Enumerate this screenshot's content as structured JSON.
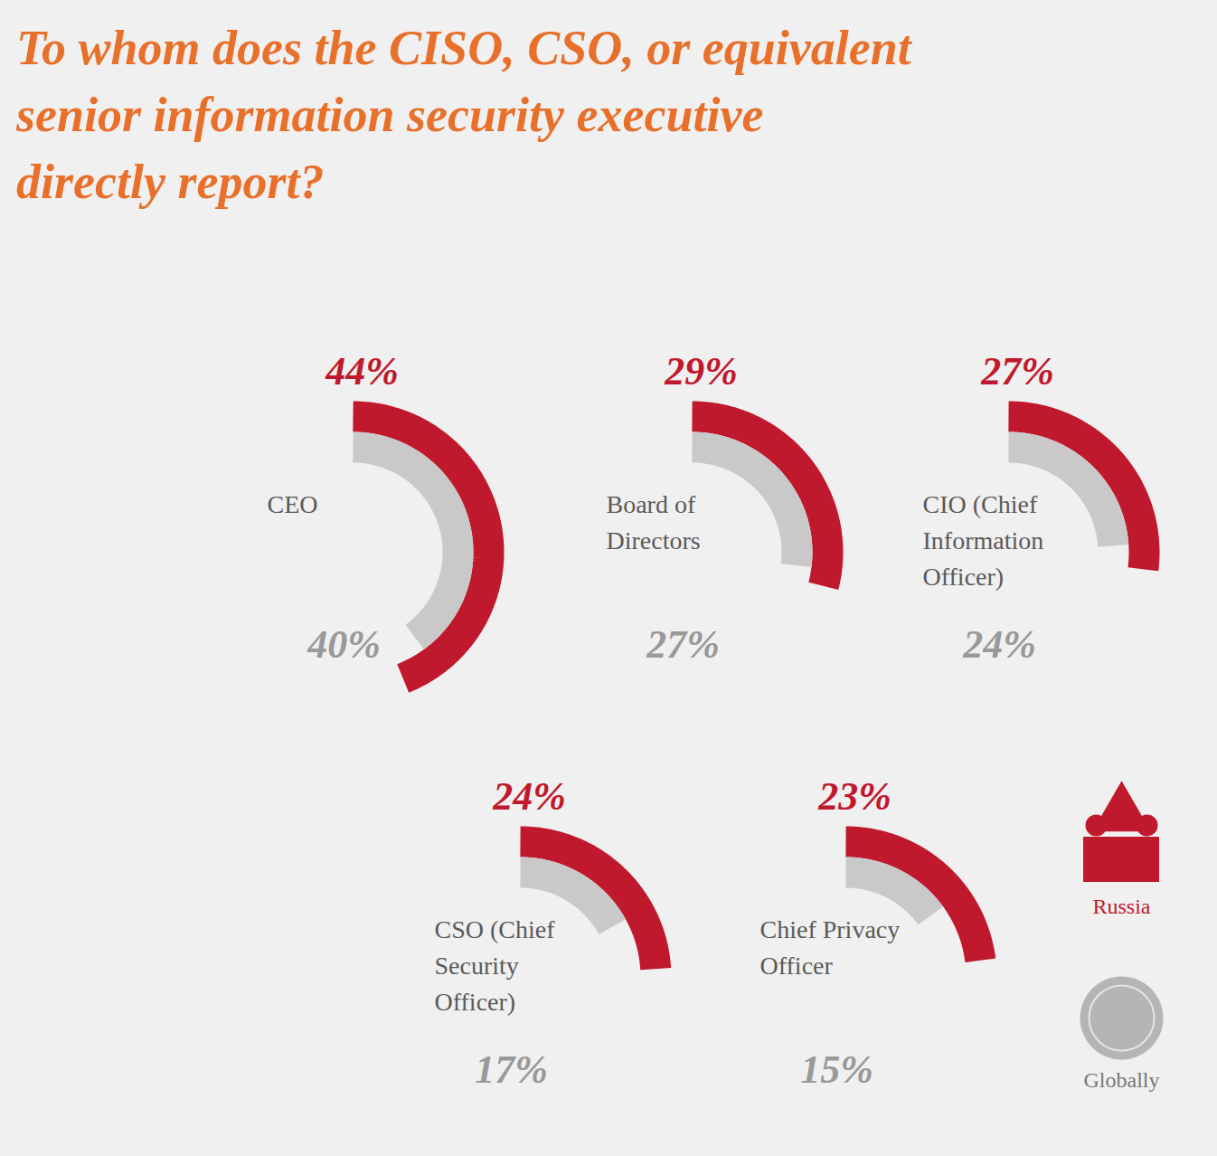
{
  "chart_data": {
    "type": "radial_bar",
    "title": "To whom does the CISO, CSO, or equivalent senior information security executive directly report?",
    "categories": [
      "CEO",
      "Board of Directors",
      "CIO (Chief Information Officer)",
      "CSO (Chief Security Officer)",
      "Chief Privacy Officer"
    ],
    "series": [
      {
        "name": "Russia",
        "color": "#c0182c",
        "values": [
          44,
          29,
          27,
          24,
          23
        ],
        "value_labels": [
          "44%",
          "29%",
          "27%",
          "24%",
          "23%"
        ]
      },
      {
        "name": "Globally",
        "color": "#c9c9c9",
        "values": [
          40,
          27,
          24,
          17,
          15
        ],
        "value_labels": [
          "40%",
          "27%",
          "24%",
          "17%",
          "15%"
        ]
      }
    ],
    "ylim": [
      0,
      100
    ],
    "data_labels": true,
    "tick_labels": false,
    "legend": "bottom-right"
  }
}
